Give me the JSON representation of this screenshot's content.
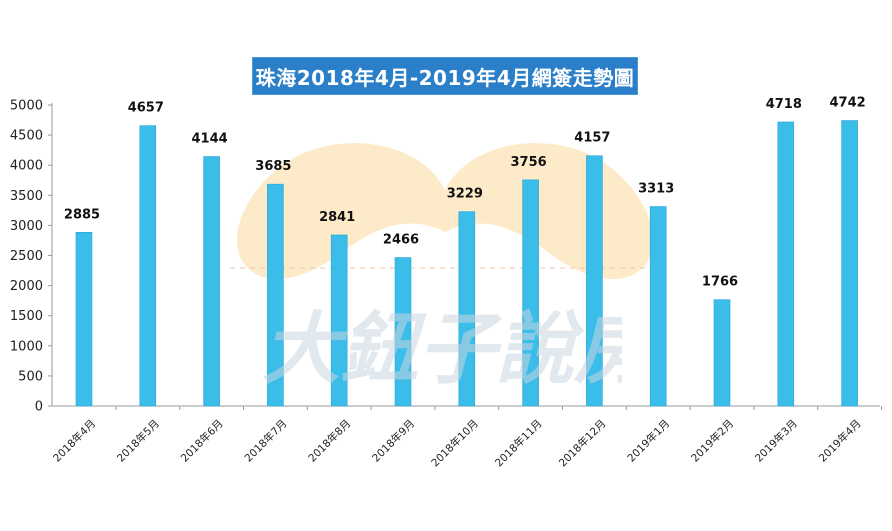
{
  "chart_data": {
    "type": "bar",
    "title": "珠海2018年4月-2019年4月網簽走勢圖",
    "categories": [
      "2018年4月",
      "2018年5月",
      "2018年6月",
      "2018年7月",
      "2018年8月",
      "2018年9月",
      "2018年10月",
      "2018年11月",
      "2018年12月",
      "2019年1月",
      "2019年2月",
      "2019年3月",
      "2019年4月"
    ],
    "values": [
      2885,
      4657,
      4144,
      3685,
      2841,
      2466,
      3229,
      3756,
      4157,
      3313,
      1766,
      4718,
      4742
    ],
    "ylim": [
      0,
      5000
    ],
    "yticks": [
      0,
      500,
      1000,
      1500,
      2000,
      2500,
      3000,
      3500,
      4000,
      4500,
      5000
    ],
    "grid": false,
    "legend": "none",
    "colors": {
      "bar": "#3bbde9",
      "bar_edge": "#2aa3d4",
      "title_bg": "#2b7fc9",
      "axis": "#9a9a9a"
    }
  },
  "watermark": {
    "text": "大鈕子說房",
    "colors": {
      "mustache": "#fbe3b5",
      "text": "#c8d6e0"
    }
  }
}
